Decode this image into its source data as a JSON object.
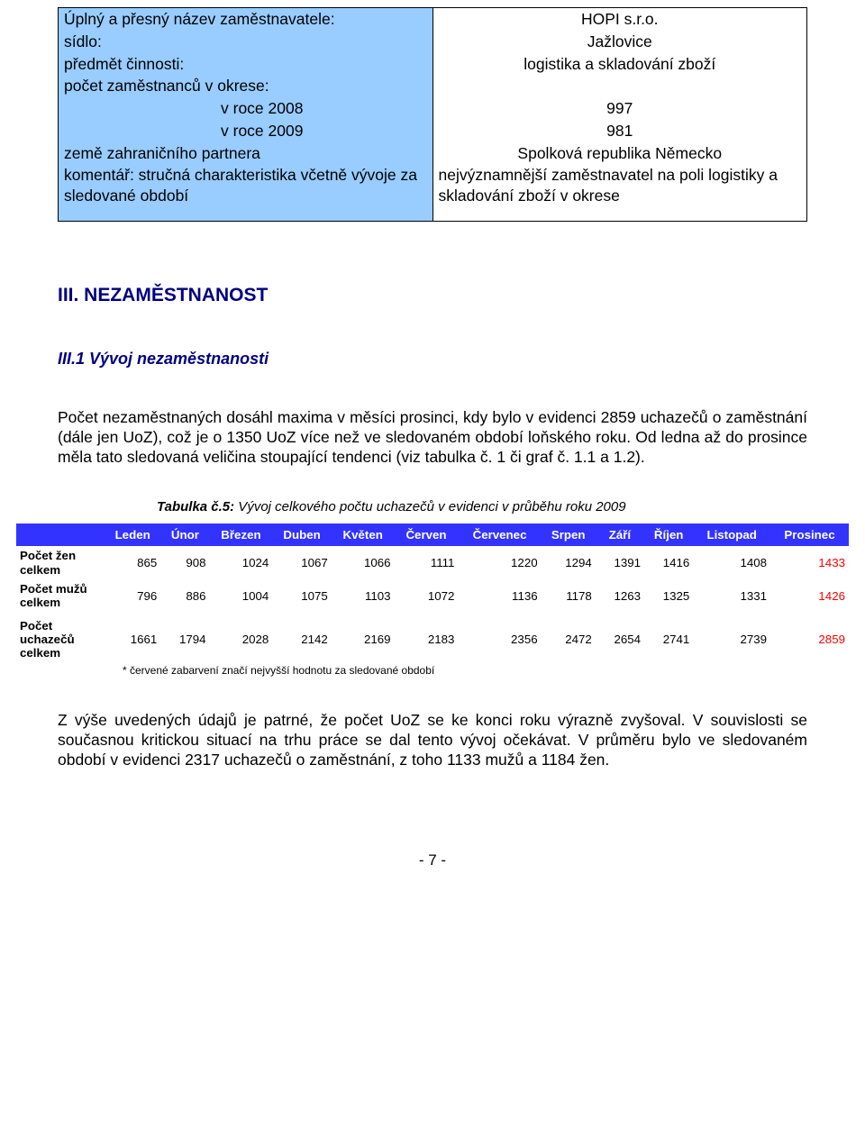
{
  "employer": {
    "rows": [
      {
        "label": "Úplný a přesný název zaměstnavatele:",
        "value": "HOPI s.r.o.",
        "align": "center",
        "sub": false
      },
      {
        "label": "sídlo:",
        "value": "Jažlovice",
        "align": "center",
        "sub": false
      },
      {
        "label": "předmět činnosti:",
        "value": "logistika a skladování zboží",
        "align": "center",
        "sub": false
      },
      {
        "label": "počet zaměstnanců v okrese:",
        "value": "",
        "align": "center",
        "sub": false
      },
      {
        "label": "v roce 2008",
        "value": "997",
        "align": "center",
        "sub": true
      },
      {
        "label": "v roce 2009",
        "value": "981",
        "align": "center",
        "sub": true
      },
      {
        "label": "země zahraničního partnera",
        "value": "Spolková republika Německo",
        "align": "center",
        "sub": false
      },
      {
        "label": "komentář: stručná charakteristika včetně vývoje za sledované období",
        "value": "nejvýznamnější zaměstnavatel na poli logistiky a skladování zboží v okrese",
        "align": "left",
        "sub": false
      }
    ]
  },
  "section_heading": "III. NEZAMĚSTNANOST",
  "sub_heading": "III.1 Vývoj nezaměstnanosti",
  "paragraph1": "Počet nezaměstnaných dosáhl maxima v měsíci prosinci, kdy bylo v evidenci 2859 uchazečů o zaměstnání (dále jen UoZ), což je o 1350 UoZ více než ve sledovaném období loňského roku. Od ledna až do prosince měla tato sledovaná veličina stoupající tendenci (viz tabulka č. 1 či graf č. 1.1 a 1.2).",
  "table_caption_prefix": "Tabulka č.5:",
  "table_caption_rest": " Vývoj celkového počtu uchazečů v evidenci v průběhu roku 2009",
  "months": [
    "Leden",
    "Únor",
    "Březen",
    "Duben",
    "Květen",
    "Červen",
    "Červenec",
    "Srpen",
    "Září",
    "Říjen",
    "Listopad",
    "Prosinec"
  ],
  "row_labels": {
    "women": "Počet žen celkem",
    "men": "Počet mužů celkem",
    "total": "Počet uchazečů celkem"
  },
  "data": {
    "women": [
      865,
      908,
      1024,
      1067,
      1066,
      1111,
      1220,
      1294,
      1391,
      1416,
      1408,
      1433
    ],
    "men": [
      796,
      886,
      1004,
      1075,
      1103,
      1072,
      1136,
      1178,
      1263,
      1325,
      1331,
      1426
    ],
    "total": [
      1661,
      1794,
      2028,
      2142,
      2169,
      2183,
      2356,
      2472,
      2654,
      2741,
      2739,
      2859
    ]
  },
  "footnote": "* červené zabarvení značí nejvyšší hodnotu za sledované období",
  "paragraph2": "Z výše uvedených údajů je patrné, že počet UoZ se ke konci roku výrazně zvyšoval. V souvislosti se současnou kritickou situací na trhu práce se dal tento vývoj očekávat. V průměru bylo ve sledovaném období v evidenci 2317 uchazečů o zaměstnání, z toho 1133 mužů a 1184 žen.",
  "page_number": "- 7 -",
  "colors": {
    "label_bg": "#99ccff",
    "month_header_bg": "#3333ff",
    "month_header_fg": "#ffffff",
    "heading_color": "#000080",
    "highlight_color": "#ff0000"
  }
}
